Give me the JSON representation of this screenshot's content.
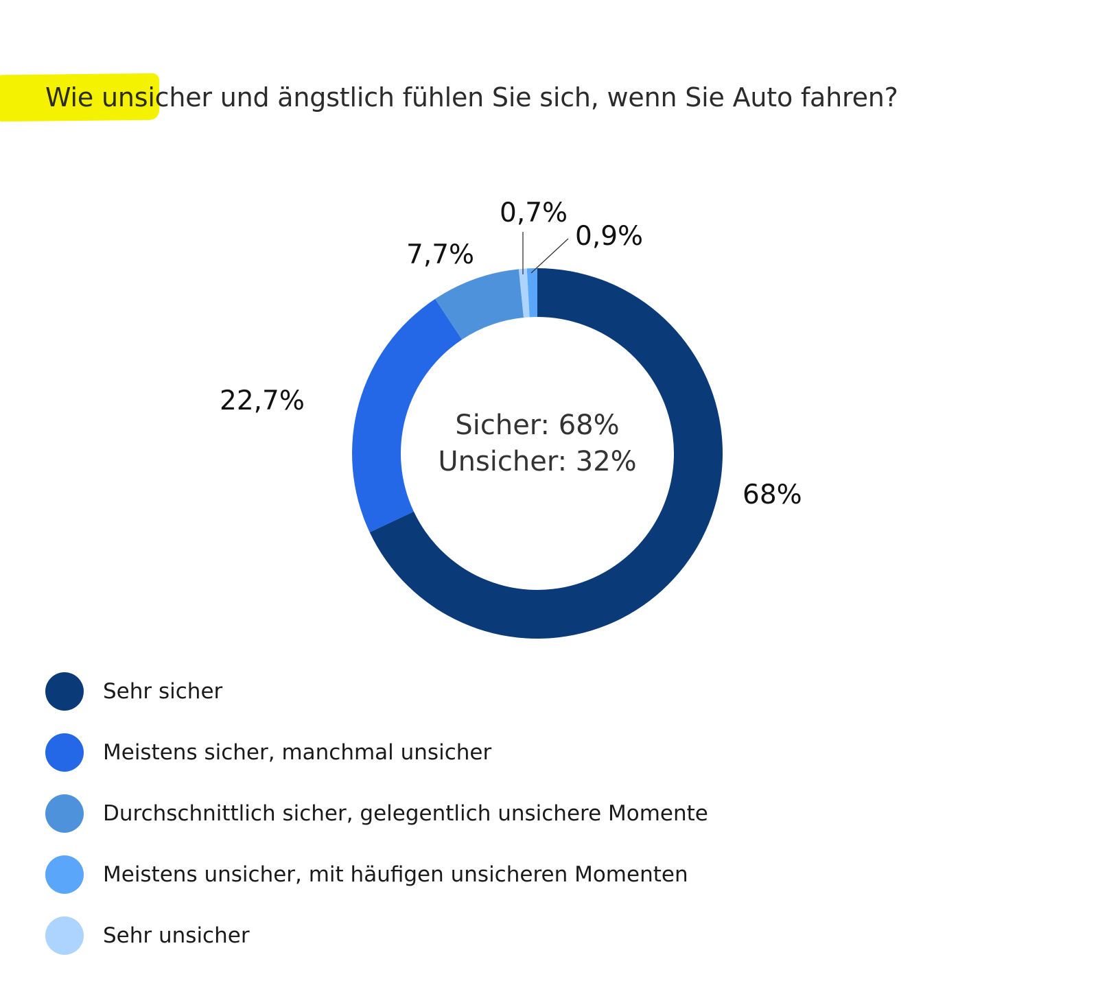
{
  "title": "Wie unsicher und ängstlich fühlen Sie sich, wenn Sie Auto fahren?",
  "chart_data": {
    "type": "pie",
    "variant": "donut",
    "title": "Wie unsicher und ängstlich fühlen Sie sich, wenn Sie Auto fahren?",
    "start": "top, clockwise",
    "center_text": [
      "Sicher: 68%",
      "Unsicher: 32%"
    ],
    "legend_placement": "bottom-left",
    "slices": [
      {
        "name": "Sehr sicher",
        "value": 68,
        "label": "68%",
        "color": "#0b3a78"
      },
      {
        "name": "Meistens sicher, manchmal unsicher",
        "value": 22.7,
        "label": "22,7%",
        "color": "#2468e8"
      },
      {
        "name": "Durchschnittlich sicher, gelegentlich unsichere Momente",
        "value": 7.7,
        "label": "7,7%",
        "color": "#4f92dc"
      },
      {
        "name": "Sehr unsicher",
        "value": 0.7,
        "label": "0,7%",
        "color": "#acd4ff"
      },
      {
        "name": "Meistens unsicher, mit häufigen unsicheren Momenten",
        "value": 0.9,
        "label": "0,9%",
        "color": "#5aa6fb"
      }
    ]
  },
  "legend": [
    {
      "label": "Sehr sicher",
      "color": "#0b3a78"
    },
    {
      "label": "Meistens sicher, manchmal unsicher",
      "color": "#2468e8"
    },
    {
      "label": "Durchschnittlich sicher, gelegentlich unsichere Momente",
      "color": "#4f92dc"
    },
    {
      "label": "Meistens unsicher, mit häufigen unsicheren Momenten",
      "color": "#5aa6fb"
    },
    {
      "label": "Sehr unsicher",
      "color": "#acd4ff"
    }
  ]
}
